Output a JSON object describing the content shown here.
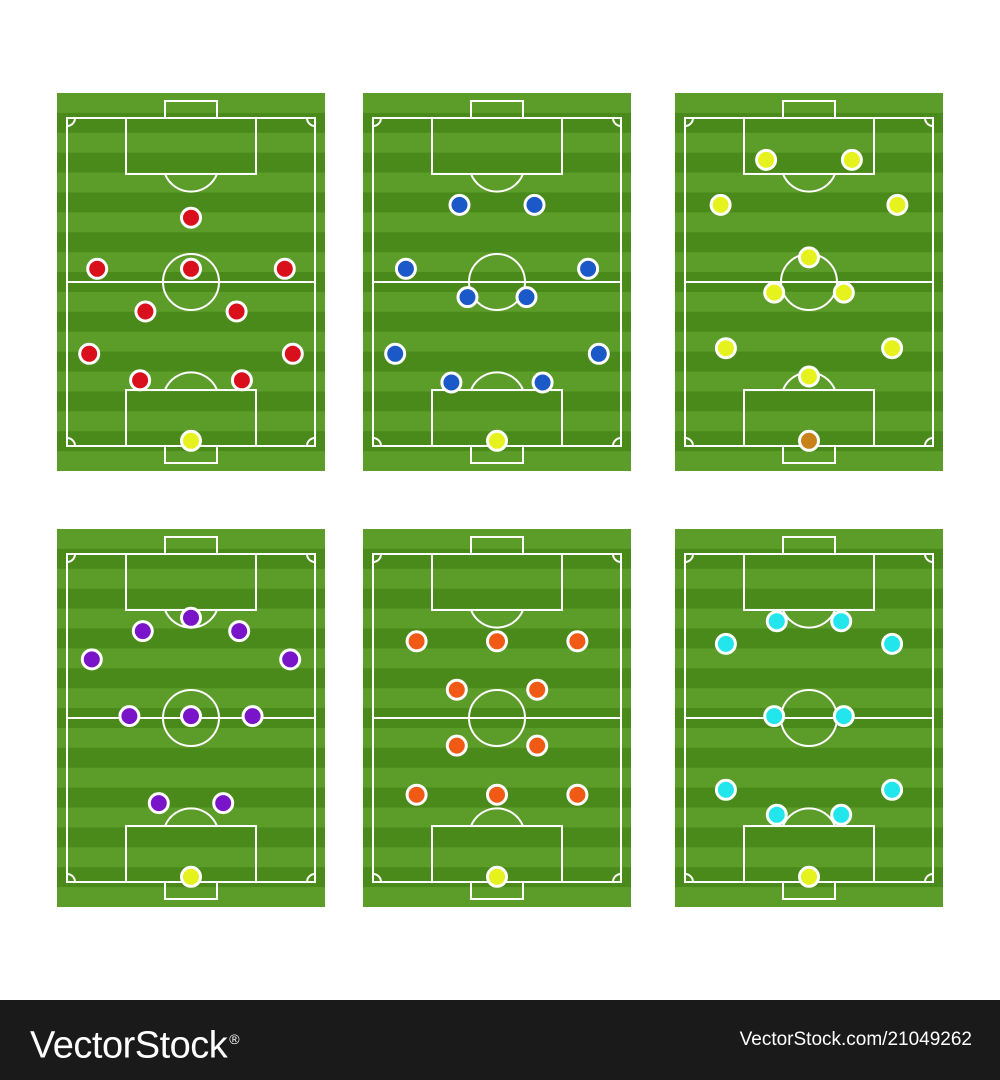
{
  "colors": {
    "grass_dark": "#4a8a1a",
    "grass_light": "#5c9c28",
    "lines": "#ffffff",
    "goalkeeper": "#e5f21d"
  },
  "formations": [
    {
      "name": "",
      "color": "#d9101b",
      "goalkeeper_color": "#e5f21d",
      "players": [
        [
          0.5,
          0.33
        ],
        [
          0.15,
          0.465
        ],
        [
          0.5,
          0.465
        ],
        [
          0.85,
          0.465
        ],
        [
          0.33,
          0.578
        ],
        [
          0.67,
          0.578
        ],
        [
          0.12,
          0.69
        ],
        [
          0.88,
          0.69
        ],
        [
          0.31,
          0.76
        ],
        [
          0.69,
          0.76
        ]
      ]
    },
    {
      "name": "",
      "color": "#1b58c8",
      "goalkeeper_color": "#e5f21d",
      "players": [
        [
          0.36,
          0.296
        ],
        [
          0.64,
          0.296
        ],
        [
          0.16,
          0.465
        ],
        [
          0.84,
          0.465
        ],
        [
          0.39,
          0.54
        ],
        [
          0.61,
          0.54
        ],
        [
          0.12,
          0.69
        ],
        [
          0.88,
          0.69
        ],
        [
          0.33,
          0.766
        ],
        [
          0.67,
          0.766
        ]
      ]
    },
    {
      "name": "",
      "color": "#e5f21d",
      "goalkeeper_color": "#c8821a",
      "players": [
        [
          0.34,
          0.177
        ],
        [
          0.66,
          0.177
        ],
        [
          0.17,
          0.296
        ],
        [
          0.83,
          0.296
        ],
        [
          0.5,
          0.435
        ],
        [
          0.37,
          0.528
        ],
        [
          0.63,
          0.528
        ],
        [
          0.19,
          0.675
        ],
        [
          0.81,
          0.675
        ],
        [
          0.5,
          0.75
        ]
      ]
    },
    {
      "name": "",
      "color": "#7a14c8",
      "goalkeeper_color": "#e5f21d",
      "players": [
        [
          0.5,
          0.235
        ],
        [
          0.32,
          0.27
        ],
        [
          0.68,
          0.27
        ],
        [
          0.13,
          0.345
        ],
        [
          0.87,
          0.345
        ],
        [
          0.27,
          0.495
        ],
        [
          0.5,
          0.495
        ],
        [
          0.73,
          0.495
        ],
        [
          0.38,
          0.725
        ],
        [
          0.62,
          0.725
        ]
      ]
    },
    {
      "name": "",
      "color": "#f05a14",
      "goalkeeper_color": "#e5f21d",
      "players": [
        [
          0.2,
          0.297
        ],
        [
          0.5,
          0.297
        ],
        [
          0.8,
          0.297
        ],
        [
          0.35,
          0.425
        ],
        [
          0.65,
          0.425
        ],
        [
          0.35,
          0.573
        ],
        [
          0.65,
          0.573
        ],
        [
          0.2,
          0.703
        ],
        [
          0.5,
          0.703
        ],
        [
          0.8,
          0.703
        ]
      ]
    },
    {
      "name": "",
      "color": "#22e6ec",
      "goalkeeper_color": "#e5f21d",
      "players": [
        [
          0.38,
          0.244
        ],
        [
          0.62,
          0.244
        ],
        [
          0.19,
          0.304
        ],
        [
          0.81,
          0.304
        ],
        [
          0.37,
          0.495
        ],
        [
          0.63,
          0.495
        ],
        [
          0.19,
          0.69
        ],
        [
          0.81,
          0.69
        ],
        [
          0.38,
          0.756
        ],
        [
          0.62,
          0.756
        ]
      ]
    }
  ],
  "watermark": {
    "logo": "VectorStock",
    "registered": "®",
    "image_id": "VectorStock.com/21049262"
  }
}
